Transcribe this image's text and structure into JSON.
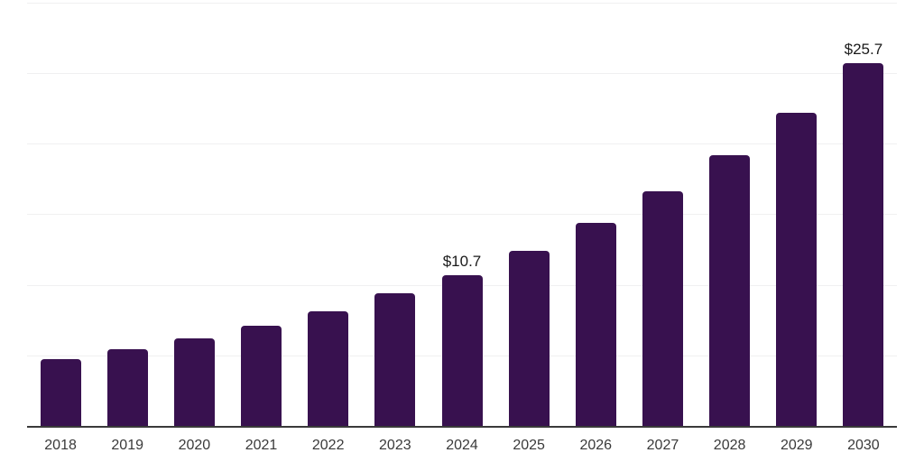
{
  "chart_data": {
    "type": "bar",
    "title": "",
    "xlabel": "",
    "ylabel": "",
    "categories": [
      "2018",
      "2019",
      "2020",
      "2021",
      "2022",
      "2023",
      "2024",
      "2025",
      "2026",
      "2027",
      "2028",
      "2029",
      "2030"
    ],
    "values": [
      4.7,
      5.4,
      6.2,
      7.1,
      8.1,
      9.4,
      10.7,
      12.4,
      14.4,
      16.6,
      19.2,
      22.2,
      25.7
    ],
    "value_labels": [
      "",
      "",
      "",
      "",
      "",
      "",
      "$10.7",
      "",
      "",
      "",
      "",
      "",
      "$25.7"
    ],
    "ylim": [
      0,
      30
    ],
    "gridline_step": 5,
    "grid": "horizontal",
    "legend": "none",
    "y_tick_labels_visible": false,
    "colors": {
      "bar": "#38114F",
      "axis": "#3a3a3a",
      "gridline": "#f0f0f1",
      "tick_label": "#3a3a3a",
      "data_label": "#1a1a1a",
      "background": "#ffffff"
    }
  }
}
